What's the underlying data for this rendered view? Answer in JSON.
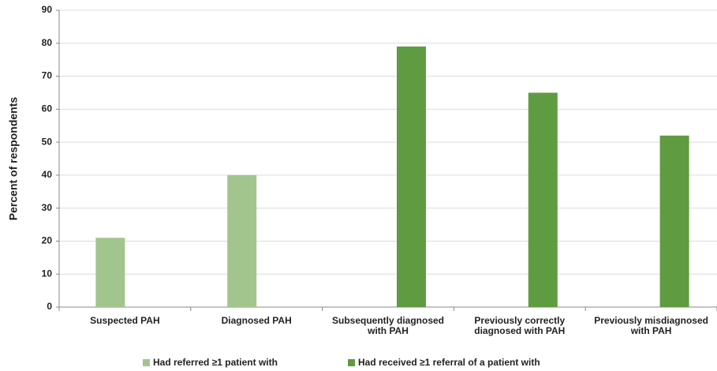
{
  "chart_data": {
    "type": "bar",
    "categories": [
      "Suspected PAH",
      "Diagnosed PAH",
      "Subsequently diagnosed with PAH",
      "Previously correctly diagnosed with PAH",
      "Previously misdiagnosed with PAH"
    ],
    "series": [
      {
        "name": "Had referred ≥1 patient with",
        "color": "#a2c58e",
        "values": [
          21,
          40,
          null,
          null,
          null
        ]
      },
      {
        "name": "Had received ≥1 referral of a patient with",
        "color": "#5f9b40",
        "values": [
          null,
          null,
          79,
          65,
          52
        ]
      }
    ],
    "y_label": "Percent of respondents",
    "ylim": [
      0,
      90
    ],
    "yticks": [
      0,
      10,
      20,
      30,
      40,
      50,
      60,
      70,
      80,
      90
    ],
    "grid": true
  }
}
